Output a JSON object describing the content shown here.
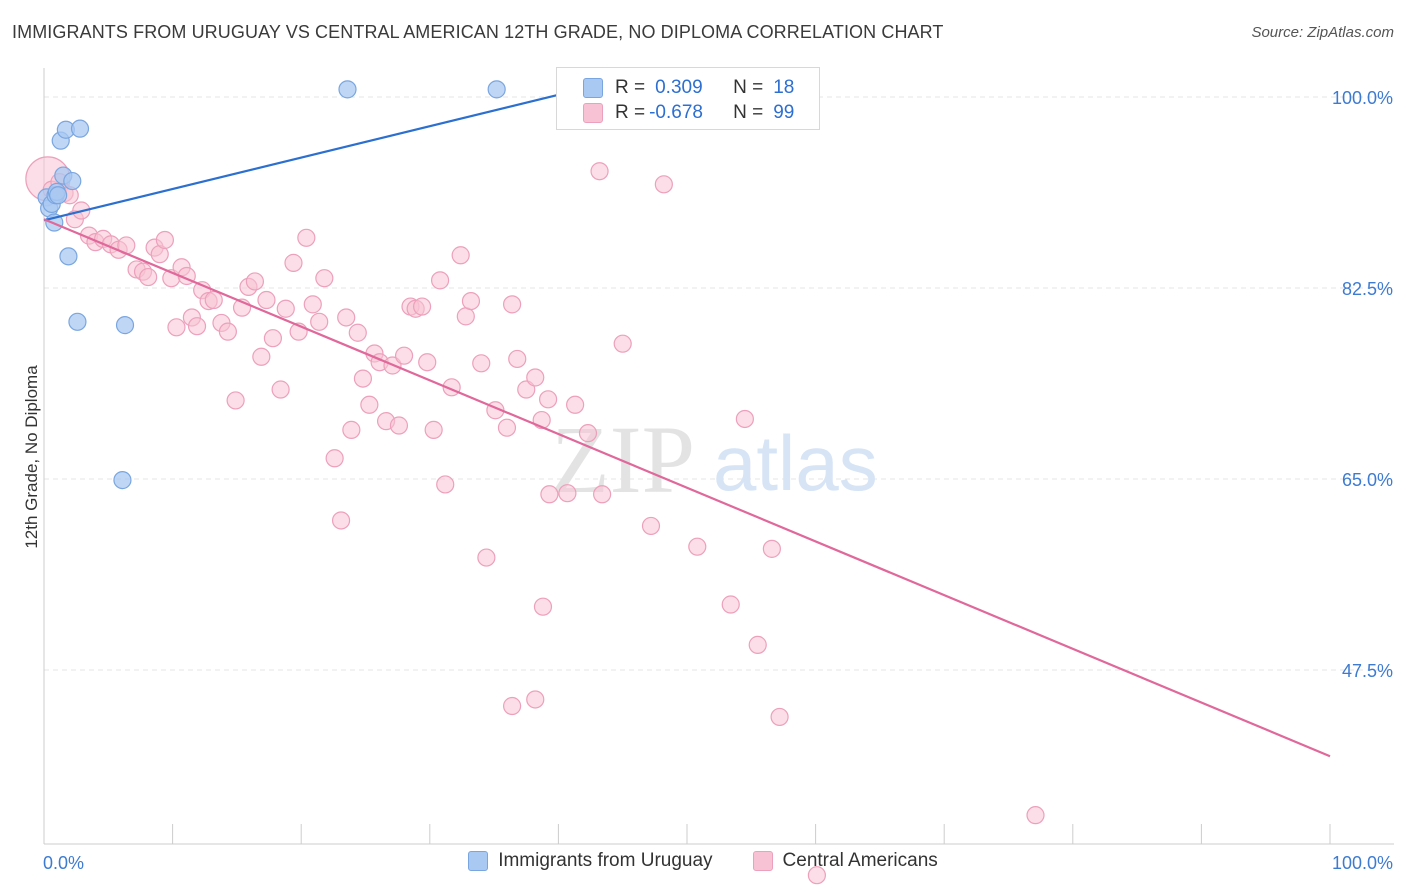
{
  "title": "IMMIGRANTS FROM URUGUAY VS CENTRAL AMERICAN 12TH GRADE, NO DIPLOMA CORRELATION CHART",
  "source": "Source: ZipAtlas.com",
  "watermark": {
    "zip": "ZIP",
    "atlas": "atlas"
  },
  "stats": {
    "uruguay": {
      "r_label": "R =",
      "r_value": "0.309",
      "n_label": "N =",
      "n_value": "18"
    },
    "central": {
      "r_label": "R =",
      "r_value": "-0.678",
      "n_label": "N =",
      "n_value": "99"
    }
  },
  "legend": {
    "uruguay": "Immigrants from Uruguay",
    "central": "Central Americans"
  },
  "colors": {
    "uruguay_fill": "#a9c8f2",
    "uruguay_stroke": "#7aa6e0",
    "uruguay_line": "#2b6fcf",
    "central_fill": "#f7c2d4",
    "central_stroke": "#eda0bb",
    "central_line": "#e0689a",
    "tick_label": "#3d7bd1",
    "grid": "#e4e4e4"
  },
  "chart_data": {
    "type": "scatter",
    "ylabel": "12th Grade, No Diploma",
    "xlim": [
      0,
      100
    ],
    "ylim": [
      30,
      102
    ],
    "x_tick_labels": [
      "0.0%",
      "100.0%"
    ],
    "y_ticks": [
      {
        "value": 100.0,
        "label": "100.0%"
      },
      {
        "value": 82.5,
        "label": "82.5%"
      },
      {
        "value": 65.0,
        "label": "65.0%"
      },
      {
        "value": 47.5,
        "label": "47.5%"
      }
    ],
    "grid": true,
    "legend_position": "bottom",
    "series": [
      {
        "name": "Immigrants from Uruguay",
        "points": [
          [
            0.2,
            90.8
          ],
          [
            0.4,
            89.8
          ],
          [
            0.6,
            90.2
          ],
          [
            0.8,
            88.5
          ],
          [
            0.9,
            91.0
          ],
          [
            1.3,
            96.0
          ],
          [
            1.5,
            92.8
          ],
          [
            1.7,
            97.0
          ],
          [
            1.9,
            85.4
          ],
          [
            2.2,
            92.3
          ],
          [
            2.6,
            79.4
          ],
          [
            2.8,
            97.1
          ],
          [
            1.0,
            91.3
          ],
          [
            6.3,
            79.1
          ],
          [
            6.1,
            64.9
          ],
          [
            23.6,
            100.7
          ],
          [
            35.2,
            100.7
          ],
          [
            1.1,
            91.0
          ]
        ],
        "trend": {
          "x0": 0,
          "y0": 88.7,
          "x1": 40,
          "y1": 100.2
        }
      },
      {
        "name": "Central Americans",
        "points": [
          [
            0.3,
            92.5
          ],
          [
            0.6,
            91.5
          ],
          [
            1.2,
            92.2
          ],
          [
            1.6,
            91.2
          ],
          [
            2.0,
            91.0
          ],
          [
            2.4,
            88.8
          ],
          [
            2.9,
            89.6
          ],
          [
            3.5,
            87.3
          ],
          [
            4.0,
            86.7
          ],
          [
            4.6,
            87.0
          ],
          [
            5.2,
            86.5
          ],
          [
            5.8,
            86.0
          ],
          [
            6.4,
            86.4
          ],
          [
            7.2,
            84.2
          ],
          [
            7.7,
            84.0
          ],
          [
            8.1,
            83.5
          ],
          [
            8.6,
            86.2
          ],
          [
            9.0,
            85.6
          ],
          [
            9.4,
            86.9
          ],
          [
            9.9,
            83.4
          ],
          [
            10.3,
            78.9
          ],
          [
            10.7,
            84.4
          ],
          [
            11.1,
            83.6
          ],
          [
            11.5,
            79.8
          ],
          [
            11.9,
            79.0
          ],
          [
            12.3,
            82.3
          ],
          [
            12.8,
            81.3
          ],
          [
            13.2,
            81.4
          ],
          [
            13.8,
            79.3
          ],
          [
            14.3,
            78.5
          ],
          [
            14.9,
            72.2
          ],
          [
            15.4,
            80.7
          ],
          [
            15.9,
            82.6
          ],
          [
            16.4,
            83.1
          ],
          [
            16.9,
            76.2
          ],
          [
            17.3,
            81.4
          ],
          [
            17.8,
            77.9
          ],
          [
            18.4,
            73.2
          ],
          [
            18.8,
            80.6
          ],
          [
            19.4,
            84.8
          ],
          [
            19.8,
            78.5
          ],
          [
            20.4,
            87.1
          ],
          [
            20.9,
            81.0
          ],
          [
            21.4,
            79.4
          ],
          [
            21.8,
            83.4
          ],
          [
            22.6,
            66.9
          ],
          [
            23.1,
            61.2
          ],
          [
            23.5,
            79.8
          ],
          [
            23.9,
            69.5
          ],
          [
            24.4,
            78.4
          ],
          [
            24.8,
            74.2
          ],
          [
            25.3,
            71.8
          ],
          [
            25.7,
            76.5
          ],
          [
            26.1,
            75.7
          ],
          [
            26.6,
            70.3
          ],
          [
            27.1,
            75.4
          ],
          [
            27.6,
            69.9
          ],
          [
            28.0,
            76.3
          ],
          [
            28.5,
            80.8
          ],
          [
            28.9,
            80.6
          ],
          [
            29.4,
            80.8
          ],
          [
            29.8,
            75.7
          ],
          [
            30.3,
            69.5
          ],
          [
            30.8,
            83.2
          ],
          [
            31.2,
            64.5
          ],
          [
            31.7,
            73.4
          ],
          [
            32.4,
            85.5
          ],
          [
            32.8,
            79.9
          ],
          [
            33.2,
            81.3
          ],
          [
            34.0,
            75.6
          ],
          [
            34.4,
            57.8
          ],
          [
            35.1,
            71.3
          ],
          [
            36.0,
            69.7
          ],
          [
            36.4,
            81.0
          ],
          [
            36.8,
            76.0
          ],
          [
            37.5,
            73.2
          ],
          [
            38.2,
            74.3
          ],
          [
            38.7,
            70.4
          ],
          [
            39.2,
            72.3
          ],
          [
            38.8,
            53.3
          ],
          [
            39.3,
            63.6
          ],
          [
            40.7,
            63.7
          ],
          [
            41.3,
            71.8
          ],
          [
            42.3,
            69.2
          ],
          [
            43.2,
            93.2
          ],
          [
            43.4,
            63.6
          ],
          [
            45.0,
            77.4
          ],
          [
            47.2,
            60.7
          ],
          [
            48.2,
            92.0
          ],
          [
            50.8,
            58.8
          ],
          [
            53.4,
            53.5
          ],
          [
            54.5,
            70.5
          ],
          [
            55.5,
            49.8
          ],
          [
            56.6,
            58.6
          ],
          [
            57.2,
            43.2
          ],
          [
            38.2,
            44.8
          ],
          [
            36.4,
            44.2
          ],
          [
            77.1,
            34.2
          ],
          [
            60.1,
            28.7
          ]
        ],
        "trend": {
          "x0": 0,
          "y0": 88.8,
          "x1": 100,
          "y1": 39.6
        }
      }
    ]
  }
}
